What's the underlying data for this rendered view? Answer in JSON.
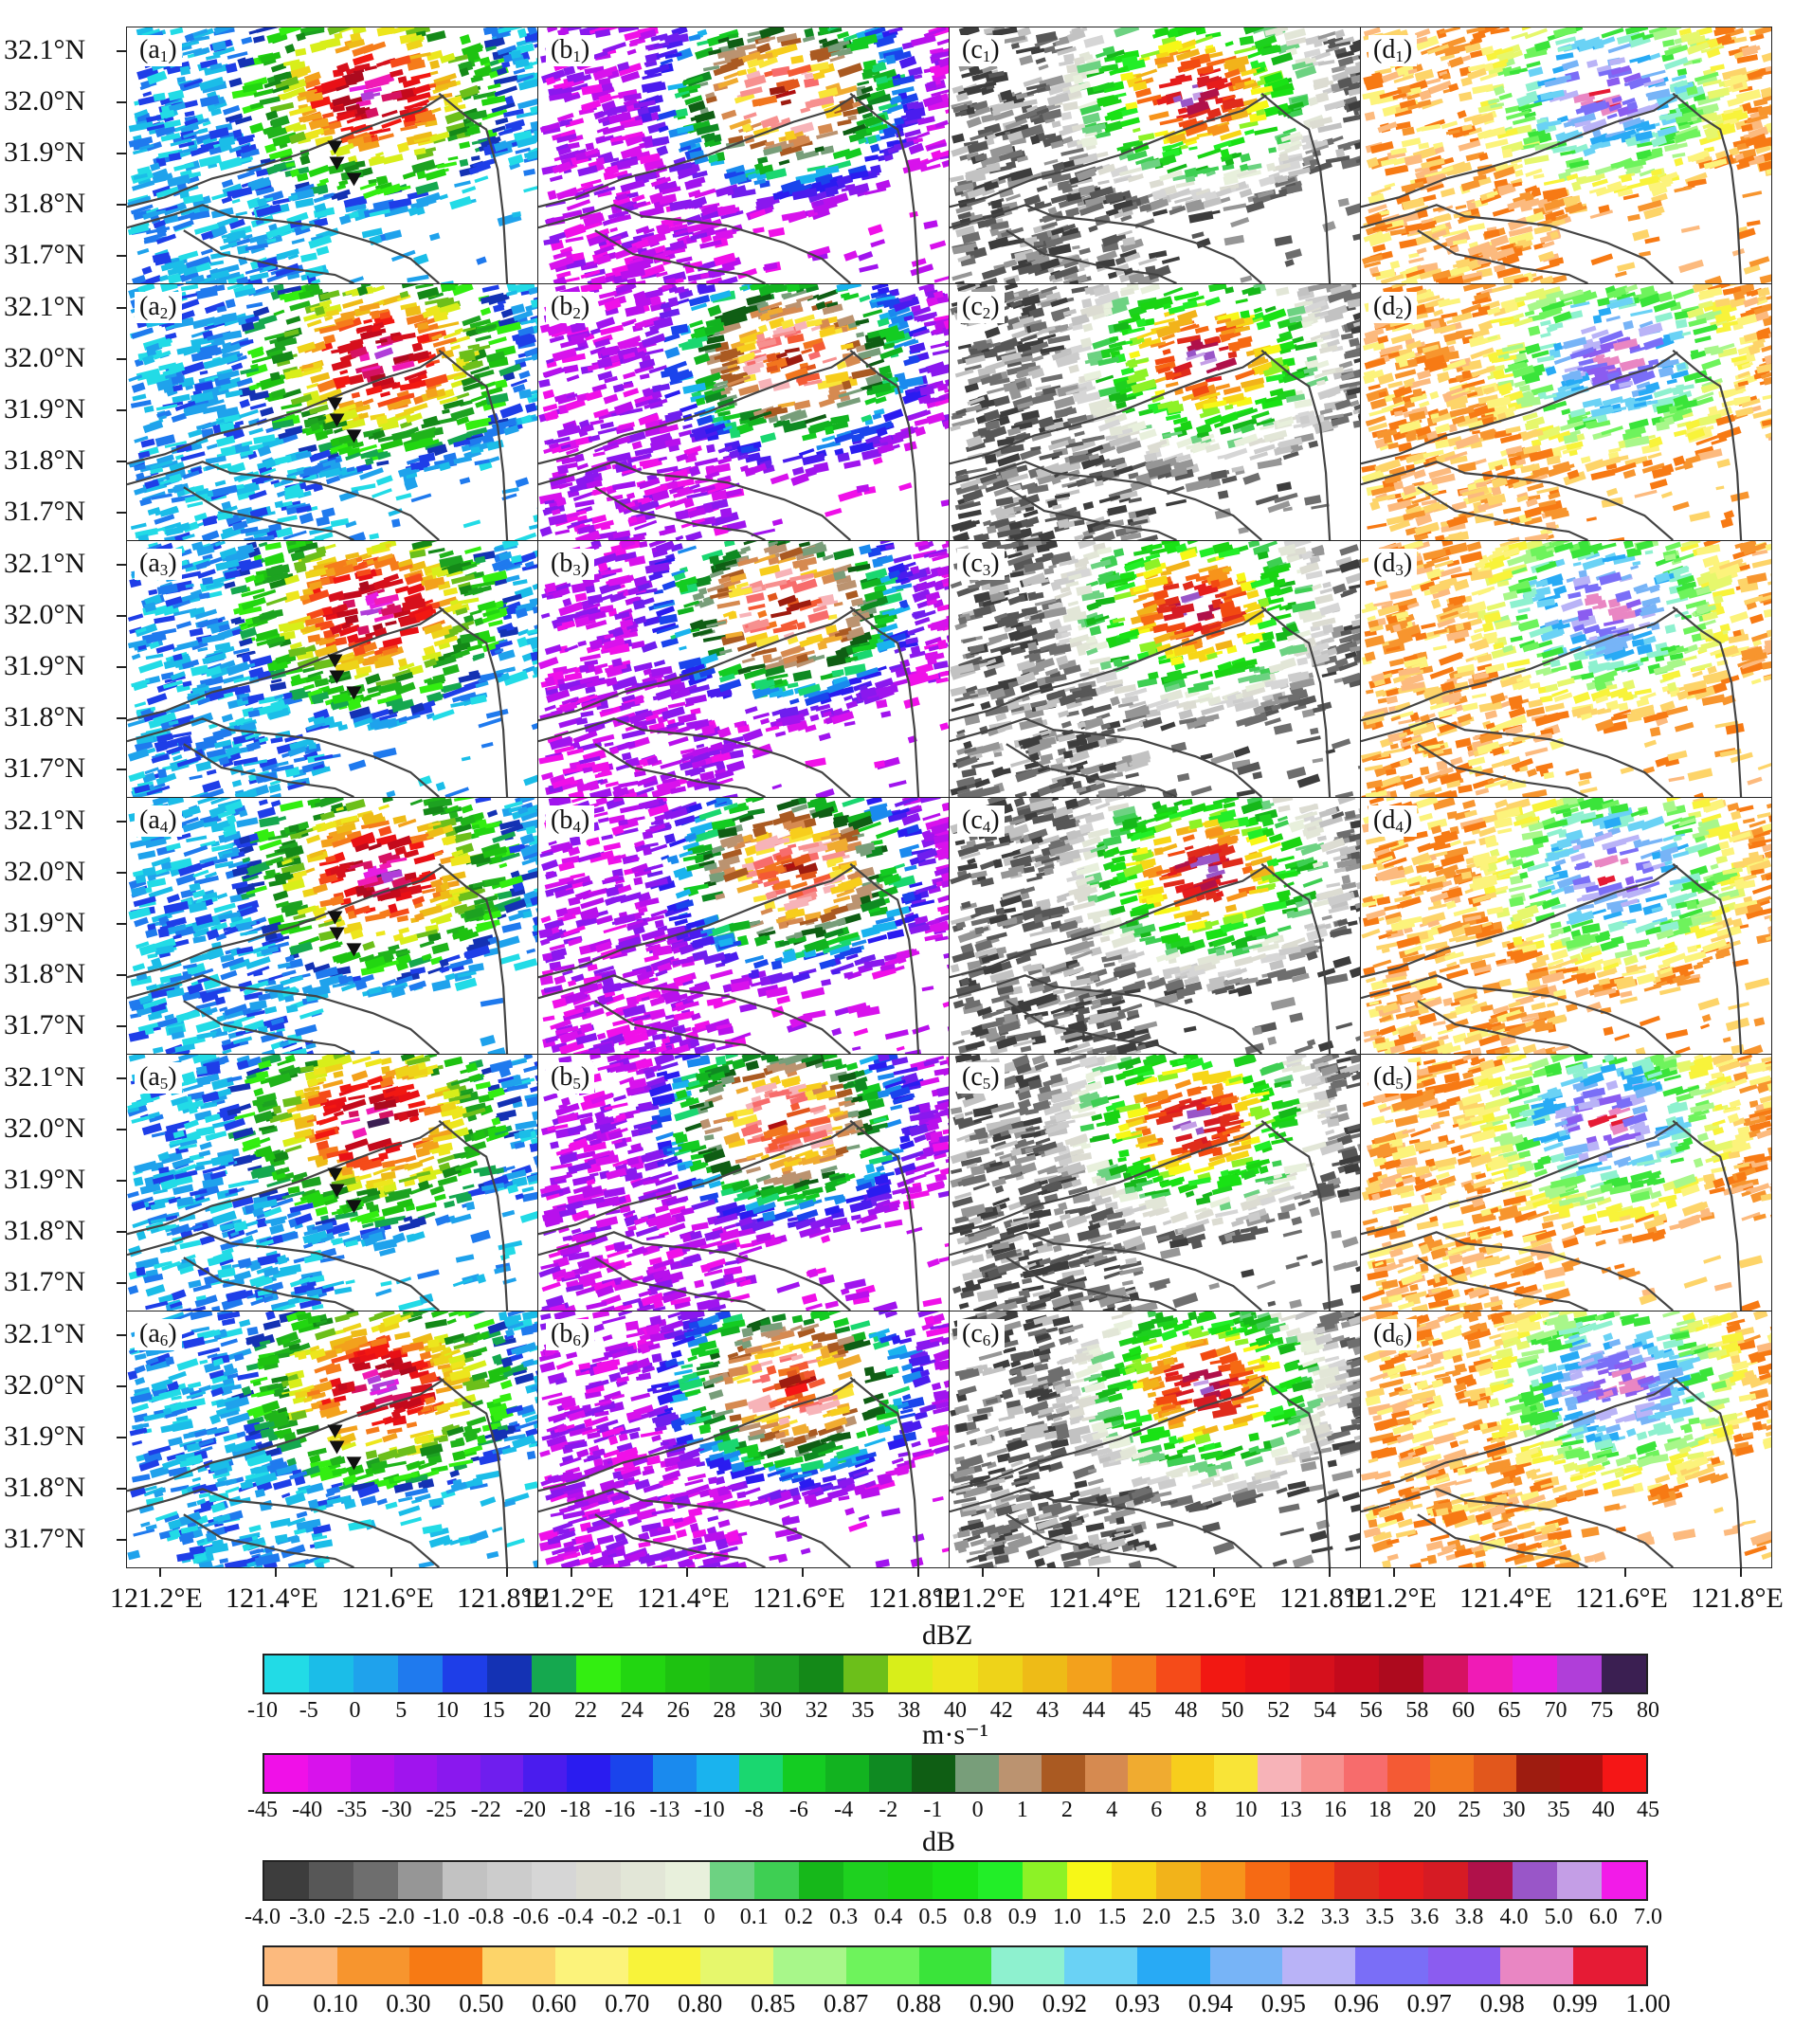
{
  "figure": {
    "lat_labels": [
      "32.1°N",
      "32.0°N",
      "31.9°N",
      "31.8°N",
      "31.7°N"
    ],
    "lon_labels": [
      "121.2°E",
      "121.4°E",
      "121.6°E",
      "121.8°E"
    ],
    "columns": [
      "a",
      "b",
      "c",
      "d"
    ],
    "rows": [
      "1",
      "2",
      "3",
      "4",
      "5",
      "6"
    ],
    "panel_types": {
      "a": "reflectivity",
      "b": "velocity",
      "c": "zdr",
      "d": "cc"
    },
    "marker_symbol": "inverted-triangle"
  },
  "colorbars": [
    {
      "id": "reflectivity",
      "title": "dBZ",
      "ticks": [
        "-10",
        "-5",
        "0",
        "5",
        "10",
        "15",
        "20",
        "22",
        "24",
        "26",
        "28",
        "30",
        "32",
        "35",
        "38",
        "40",
        "42",
        "43",
        "44",
        "45",
        "48",
        "50",
        "52",
        "54",
        "56",
        "58",
        "60",
        "65",
        "70",
        "75",
        "80"
      ],
      "colors": [
        "#22dbe6",
        "#1bbde8",
        "#1fa2ec",
        "#1f7aee",
        "#1e3ee8",
        "#1432b4",
        "#15a84f",
        "#33ee11",
        "#22d611",
        "#1ec211",
        "#20b41b",
        "#1da221",
        "#148918",
        "#6cbf1a",
        "#d8ee1a",
        "#ede61d",
        "#eed319",
        "#eebb17",
        "#f3a11c",
        "#f57c1b",
        "#f54b19",
        "#f21812",
        "#e81016",
        "#d6101c",
        "#c40a1c",
        "#ad0a1e",
        "#d61262",
        "#f01bb6",
        "#e61de3",
        "#b03ed9",
        "#3b1f52"
      ]
    },
    {
      "id": "velocity",
      "title": "m·s⁻¹",
      "ticks": [
        "-45",
        "-40",
        "-35",
        "-30",
        "-25",
        "-22",
        "-20",
        "-18",
        "-16",
        "-13",
        "-10",
        "-8",
        "-6",
        "-4",
        "-2",
        "-1",
        "0",
        "1",
        "2",
        "4",
        "6",
        "8",
        "10",
        "13",
        "16",
        "18",
        "20",
        "25",
        "30",
        "35",
        "40",
        "45"
      ],
      "colors": [
        "#f010e8",
        "#d812ec",
        "#b810ec",
        "#a014ee",
        "#8a18ee",
        "#6f1eee",
        "#4a1cee",
        "#2a1cf0",
        "#1a44ec",
        "#1a8aee",
        "#1ab3ee",
        "#1ad770",
        "#14cc22",
        "#12b320",
        "#0f8a22",
        "#0f5e14",
        "#789e7a",
        "#bb9370",
        "#aa5a22",
        "#d68a50",
        "#f0ab30",
        "#f7cd1c",
        "#f9e437",
        "#f7b3b8",
        "#f7908f",
        "#f76c6c",
        "#f45a34",
        "#f2761e",
        "#e2571c",
        "#9e1c10",
        "#b01010",
        "#f51616"
      ]
    },
    {
      "id": "zdr",
      "title": "dB",
      "ticks": [
        "-4.0",
        "-3.0",
        "-2.5",
        "-2.0",
        "-1.0",
        "-0.8",
        "-0.6",
        "-0.4",
        "-0.2",
        "-0.1",
        "0",
        "0.1",
        "0.2",
        "0.3",
        "0.4",
        "0.5",
        "0.8",
        "0.9",
        "1.0",
        "1.5",
        "2.0",
        "2.5",
        "3.0",
        "3.2",
        "3.3",
        "3.5",
        "3.6",
        "3.8",
        "4.0",
        "5.0",
        "6.0",
        "7.0"
      ],
      "colors": [
        "#3d3d3d",
        "#575757",
        "#6e6e6e",
        "#969696",
        "#c2c2c2",
        "#cccccc",
        "#d6d6d6",
        "#dcdcd2",
        "#e2e6d7",
        "#e8f0dc",
        "#6dd282",
        "#3ecf53",
        "#16b81a",
        "#1ed11f",
        "#1ad413",
        "#19e215",
        "#22ee28",
        "#8df226",
        "#f7f717",
        "#f7d617",
        "#f2b31a",
        "#f7941b",
        "#f66a14",
        "#f24a11",
        "#e02c1b",
        "#e61c1c",
        "#d61b24",
        "#b0114a",
        "#9956c8",
        "#c49ee6",
        "#f21be8"
      ]
    },
    {
      "id": "cc",
      "title": "",
      "ticks": [
        "0",
        "0.10",
        "0.30",
        "0.50",
        "0.60",
        "0.70",
        "0.80",
        "0.85",
        "0.87",
        "0.88",
        "0.90",
        "0.92",
        "0.93",
        "0.94",
        "0.95",
        "0.96",
        "0.97",
        "0.98",
        "0.99",
        "1.00"
      ],
      "colors": [
        "#fcba7e",
        "#f7952e",
        "#f77a14",
        "#fdd469",
        "#fcf37b",
        "#f8f33a",
        "#e6f76c",
        "#a8f78a",
        "#6ef35c",
        "#3ae43a",
        "#8ef1cf",
        "#6ad2f5",
        "#28aaf5",
        "#77b4f7",
        "#b9b3f7",
        "#7a6ef7",
        "#8b5cf0",
        "#e986c3",
        "#e61b35"
      ]
    }
  ]
}
